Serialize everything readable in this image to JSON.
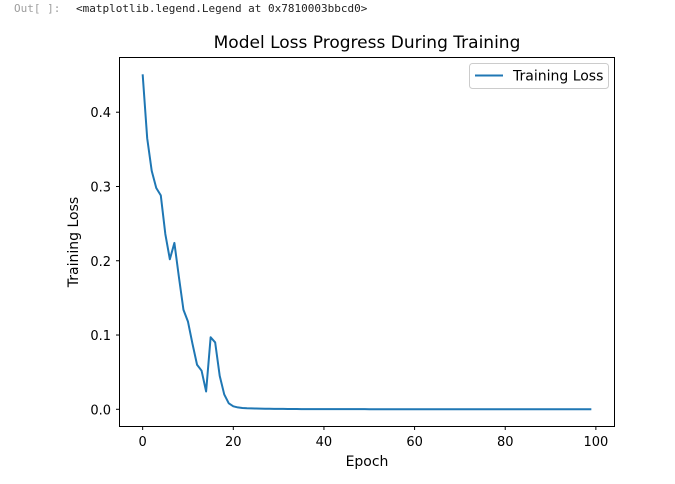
{
  "cell_output": {
    "prompt": "Out[ ]:",
    "text": "<matplotlib.legend.Legend at 0x7810003bbcd0>"
  },
  "chart_data": {
    "type": "line",
    "title": "Model Loss Progress During Training",
    "xlabel": "Epoch",
    "ylabel": "Training Loss",
    "xlim": [
      -5,
      104
    ],
    "ylim": [
      -0.0225,
      0.473
    ],
    "xticks": [
      0,
      20,
      40,
      60,
      80,
      100
    ],
    "xtick_labels": [
      "0",
      "20",
      "40",
      "60",
      "80",
      "100"
    ],
    "yticks": [
      0.0,
      0.1,
      0.2,
      0.3,
      0.4
    ],
    "ytick_labels": [
      "0.0",
      "0.1",
      "0.2",
      "0.3",
      "0.4"
    ],
    "legend_position": "top-right",
    "grid": false,
    "series": [
      {
        "name": "Training Loss",
        "color": "#1f77b4",
        "x": [
          0,
          1,
          2,
          3,
          4,
          5,
          6,
          7,
          8,
          9,
          10,
          11,
          12,
          13,
          14,
          15,
          16,
          17,
          18,
          19,
          20,
          21,
          22,
          23,
          24,
          25,
          26,
          27,
          28,
          29,
          30,
          31,
          32,
          33,
          34,
          35,
          36,
          37,
          38,
          39,
          40,
          41,
          42,
          43,
          44,
          45,
          46,
          47,
          48,
          49,
          50,
          51,
          52,
          53,
          54,
          55,
          56,
          57,
          58,
          59,
          60,
          61,
          62,
          63,
          64,
          65,
          66,
          67,
          68,
          69,
          70,
          71,
          72,
          73,
          74,
          75,
          76,
          77,
          78,
          79,
          80,
          81,
          82,
          83,
          84,
          85,
          86,
          87,
          88,
          89,
          90,
          91,
          92,
          93,
          94,
          95,
          96,
          97,
          98,
          99
        ],
        "y": [
          0.451,
          0.365,
          0.321,
          0.298,
          0.288,
          0.236,
          0.202,
          0.224,
          0.178,
          0.134,
          0.118,
          0.088,
          0.06,
          0.052,
          0.024,
          0.097,
          0.09,
          0.045,
          0.02,
          0.008,
          0.004,
          0.0025,
          0.0018,
          0.0014,
          0.0012,
          0.001,
          0.0009,
          0.0008,
          0.0007,
          0.0006,
          0.0005,
          0.0005,
          0.0004,
          0.0004,
          0.0004,
          0.0003,
          0.0003,
          0.0003,
          0.0003,
          0.0003,
          0.0002,
          0.0002,
          0.0002,
          0.0002,
          0.0002,
          0.0002,
          0.0002,
          0.0002,
          0.0002,
          0.0002,
          0.0001,
          0.0001,
          0.0001,
          0.0001,
          0.0001,
          0.0001,
          0.0001,
          0.0001,
          0.0001,
          0.0001,
          0.0001,
          0.0001,
          0.0001,
          0.0001,
          0.0001,
          0.0001,
          0.0001,
          0.0001,
          0.0001,
          0.0001,
          0.0001,
          0.0001,
          0.0001,
          0.0001,
          0.0001,
          0.0001,
          0.0001,
          0.0001,
          0.0001,
          0.0001,
          0.0001,
          0.0001,
          0.0001,
          0.0001,
          0.0001,
          0.0001,
          0.0001,
          0.0001,
          0.0001,
          0.0001,
          0.0001,
          0.0001,
          0.0001,
          0.0001,
          0.0001,
          0.0001,
          0.0001,
          0.0001,
          0.0001,
          0.0001
        ]
      }
    ]
  }
}
